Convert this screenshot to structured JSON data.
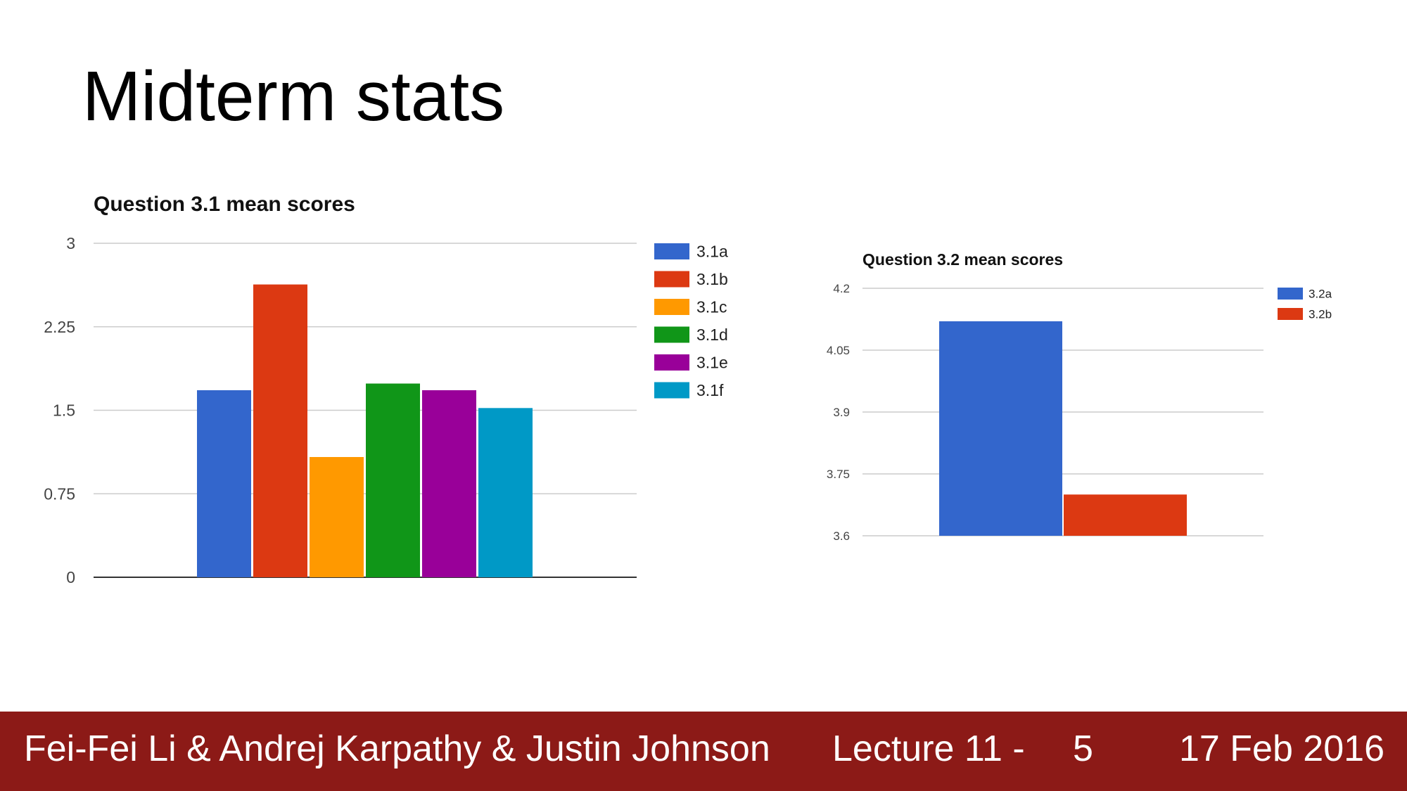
{
  "slide": {
    "title": "Midterm stats"
  },
  "footer": {
    "authors": "Fei-Fei Li & Andrej Karpathy & Justin Johnson",
    "lecture": "Lecture 11 -",
    "page": "5",
    "date": "17 Feb 2016"
  },
  "chart_data": [
    {
      "type": "bar",
      "title": "Question 3.1 mean scores",
      "xlabel": "",
      "ylabel": "",
      "ylim": [
        0,
        3
      ],
      "yticks": [
        "0",
        "0.75",
        "1.5",
        "2.25",
        "3"
      ],
      "grid": true,
      "legend_position": "right",
      "series": [
        {
          "name": "3.1a",
          "values": [
            1.68
          ],
          "color": "#3366cc"
        },
        {
          "name": "3.1b",
          "values": [
            2.63
          ],
          "color": "#dc3912"
        },
        {
          "name": "3.1c",
          "values": [
            1.08
          ],
          "color": "#ff9900"
        },
        {
          "name": "3.1d",
          "values": [
            1.74
          ],
          "color": "#109618"
        },
        {
          "name": "3.1e",
          "values": [
            1.68
          ],
          "color": "#990099"
        },
        {
          "name": "3.1f",
          "values": [
            1.52
          ],
          "color": "#0099c6"
        }
      ]
    },
    {
      "type": "bar",
      "title": "Question 3.2 mean scores",
      "xlabel": "",
      "ylabel": "",
      "ylim": [
        3.6,
        4.2
      ],
      "yticks": [
        "3.6",
        "3.75",
        "3.9",
        "4.05",
        "4.2"
      ],
      "grid": true,
      "legend_position": "top-right",
      "series": [
        {
          "name": "3.2a",
          "values": [
            4.12
          ],
          "color": "#3366cc"
        },
        {
          "name": "3.2b",
          "values": [
            3.7
          ],
          "color": "#dc3912"
        }
      ]
    }
  ]
}
